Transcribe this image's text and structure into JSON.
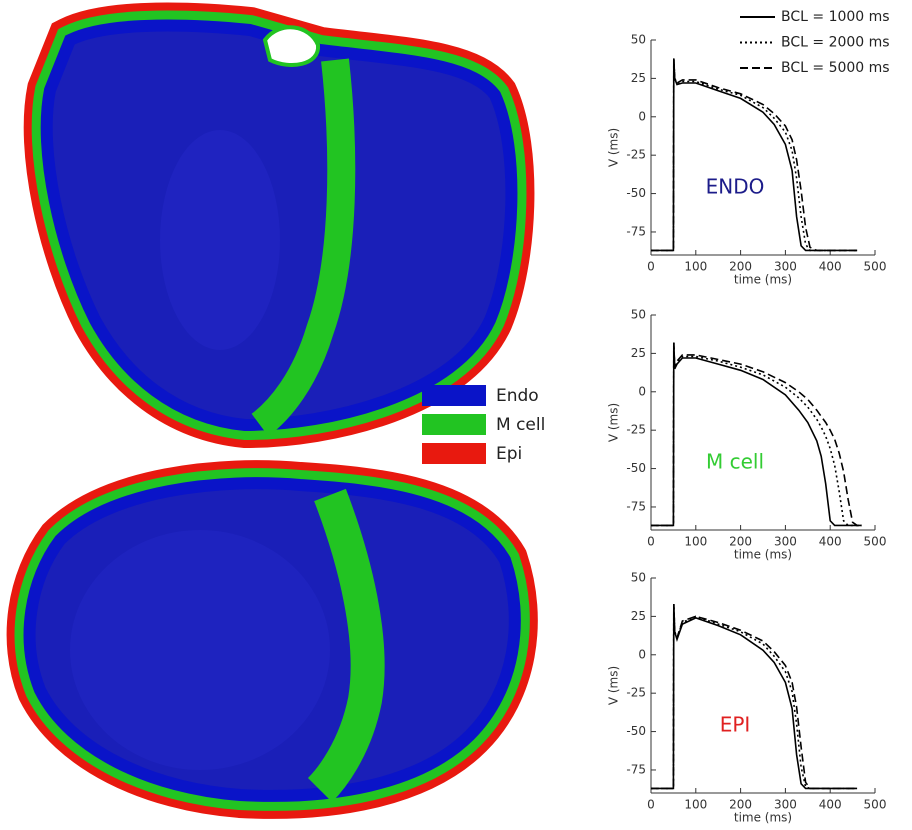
{
  "legend": {
    "items": [
      {
        "label": "Endo",
        "color": "#0a14c8"
      },
      {
        "label": "M cell",
        "color": "#22c422"
      },
      {
        "label": "Epi",
        "color": "#e8190f"
      }
    ]
  },
  "chart_data": [
    {
      "type": "line",
      "label": "ENDO",
      "label_color": "#1c1c8a",
      "x_label": "time (ms)",
      "y_label": "V (ms)",
      "xlim": [
        0,
        500
      ],
      "xticks": [
        0,
        100,
        200,
        300,
        400,
        500
      ],
      "ylim": [
        -90,
        50
      ],
      "yticks": [
        -75,
        -50,
        -25,
        0,
        25,
        50
      ],
      "x": [
        0,
        50,
        51,
        53,
        58,
        70,
        100,
        150,
        200,
        250,
        275,
        300,
        315,
        325,
        335,
        345,
        355,
        370,
        400,
        420,
        460
      ],
      "series": [
        {
          "name": "BCL = 1000 ms",
          "color": "#000000",
          "dash": "solid",
          "values": [
            -87,
            -87,
            38,
            25,
            21,
            22,
            22,
            17,
            12,
            3,
            -5,
            -18,
            -35,
            -65,
            -84,
            -87,
            -87,
            -87,
            -87,
            -87,
            -87
          ]
        },
        {
          "name": "BCL = 2000 ms",
          "color": "#000000",
          "dash": "dotted",
          "values": [
            -87,
            -87,
            38,
            25,
            22,
            23,
            23,
            18,
            14,
            6,
            -1,
            -10,
            -22,
            -40,
            -65,
            -83,
            -87,
            -87,
            -87,
            -87,
            -87
          ]
        },
        {
          "name": "BCL = 5000 ms",
          "color": "#000000",
          "dash": "dashed",
          "values": [
            -87,
            -87,
            38,
            25,
            22,
            24,
            24,
            19,
            15,
            8,
            2,
            -6,
            -15,
            -28,
            -48,
            -72,
            -85,
            -87,
            -87,
            -87,
            -87
          ]
        }
      ]
    },
    {
      "type": "line",
      "label": "M cell",
      "label_color": "#33cc33",
      "x_label": "time (ms)",
      "y_label": "V (ms)",
      "xlim": [
        0,
        500
      ],
      "xticks": [
        0,
        100,
        200,
        300,
        400,
        500
      ],
      "ylim": [
        -90,
        50
      ],
      "yticks": [
        -75,
        -50,
        -25,
        0,
        25,
        50
      ],
      "x": [
        0,
        50,
        51,
        53,
        58,
        70,
        100,
        150,
        200,
        250,
        300,
        330,
        350,
        370,
        380,
        390,
        400,
        410,
        420,
        430,
        440,
        450,
        460,
        470
      ],
      "series": [
        {
          "color": "#000000",
          "dash": "solid",
          "values": [
            -87,
            -87,
            32,
            15,
            18,
            22,
            22,
            18,
            14,
            8,
            -2,
            -12,
            -20,
            -32,
            -42,
            -60,
            -84,
            -87,
            -87,
            -87,
            -87,
            -87,
            -87,
            -87
          ]
        },
        {
          "color": "#000000",
          "dash": "dotted",
          "values": [
            -87,
            -87,
            32,
            15,
            19,
            23,
            23,
            20,
            16,
            11,
            3,
            -4,
            -10,
            -18,
            -23,
            -29,
            -37,
            -48,
            -65,
            -84,
            -87,
            -87,
            -87,
            -87
          ]
        },
        {
          "color": "#000000",
          "dash": "dashed",
          "values": [
            -87,
            -87,
            32,
            15,
            20,
            24,
            24,
            21,
            18,
            13,
            6,
            0,
            -5,
            -12,
            -16,
            -20,
            -25,
            -31,
            -40,
            -52,
            -70,
            -85,
            -87,
            -87
          ]
        }
      ]
    },
    {
      "type": "line",
      "label": "EPI",
      "label_color": "#e02020",
      "x_label": "time (ms)",
      "y_label": "V (ms)",
      "xlim": [
        0,
        500
      ],
      "xticks": [
        0,
        100,
        200,
        300,
        400,
        500
      ],
      "ylim": [
        -90,
        50
      ],
      "yticks": [
        -75,
        -50,
        -25,
        0,
        25,
        50
      ],
      "x": [
        0,
        50,
        51,
        53,
        58,
        70,
        100,
        150,
        200,
        250,
        275,
        300,
        315,
        325,
        335,
        345,
        355,
        370,
        400,
        420,
        460
      ],
      "series": [
        {
          "color": "#000000",
          "dash": "solid",
          "values": [
            -87,
            -87,
            33,
            15,
            10,
            20,
            24,
            19,
            13,
            3,
            -5,
            -18,
            -35,
            -65,
            -84,
            -87,
            -87,
            -87,
            -87,
            -87,
            -87
          ]
        },
        {
          "color": "#000000",
          "dash": "dotted",
          "values": [
            -87,
            -87,
            33,
            15,
            11,
            21,
            25,
            20,
            15,
            7,
            -1,
            -11,
            -24,
            -45,
            -73,
            -86,
            -87,
            -87,
            -87,
            -87,
            -87
          ]
        },
        {
          "color": "#000000",
          "dash": "dashed",
          "values": [
            -87,
            -87,
            33,
            15,
            11,
            22,
            25,
            21,
            16,
            9,
            2,
            -7,
            -18,
            -34,
            -60,
            -83,
            -87,
            -87,
            -87,
            -87,
            -87
          ]
        }
      ]
    }
  ]
}
